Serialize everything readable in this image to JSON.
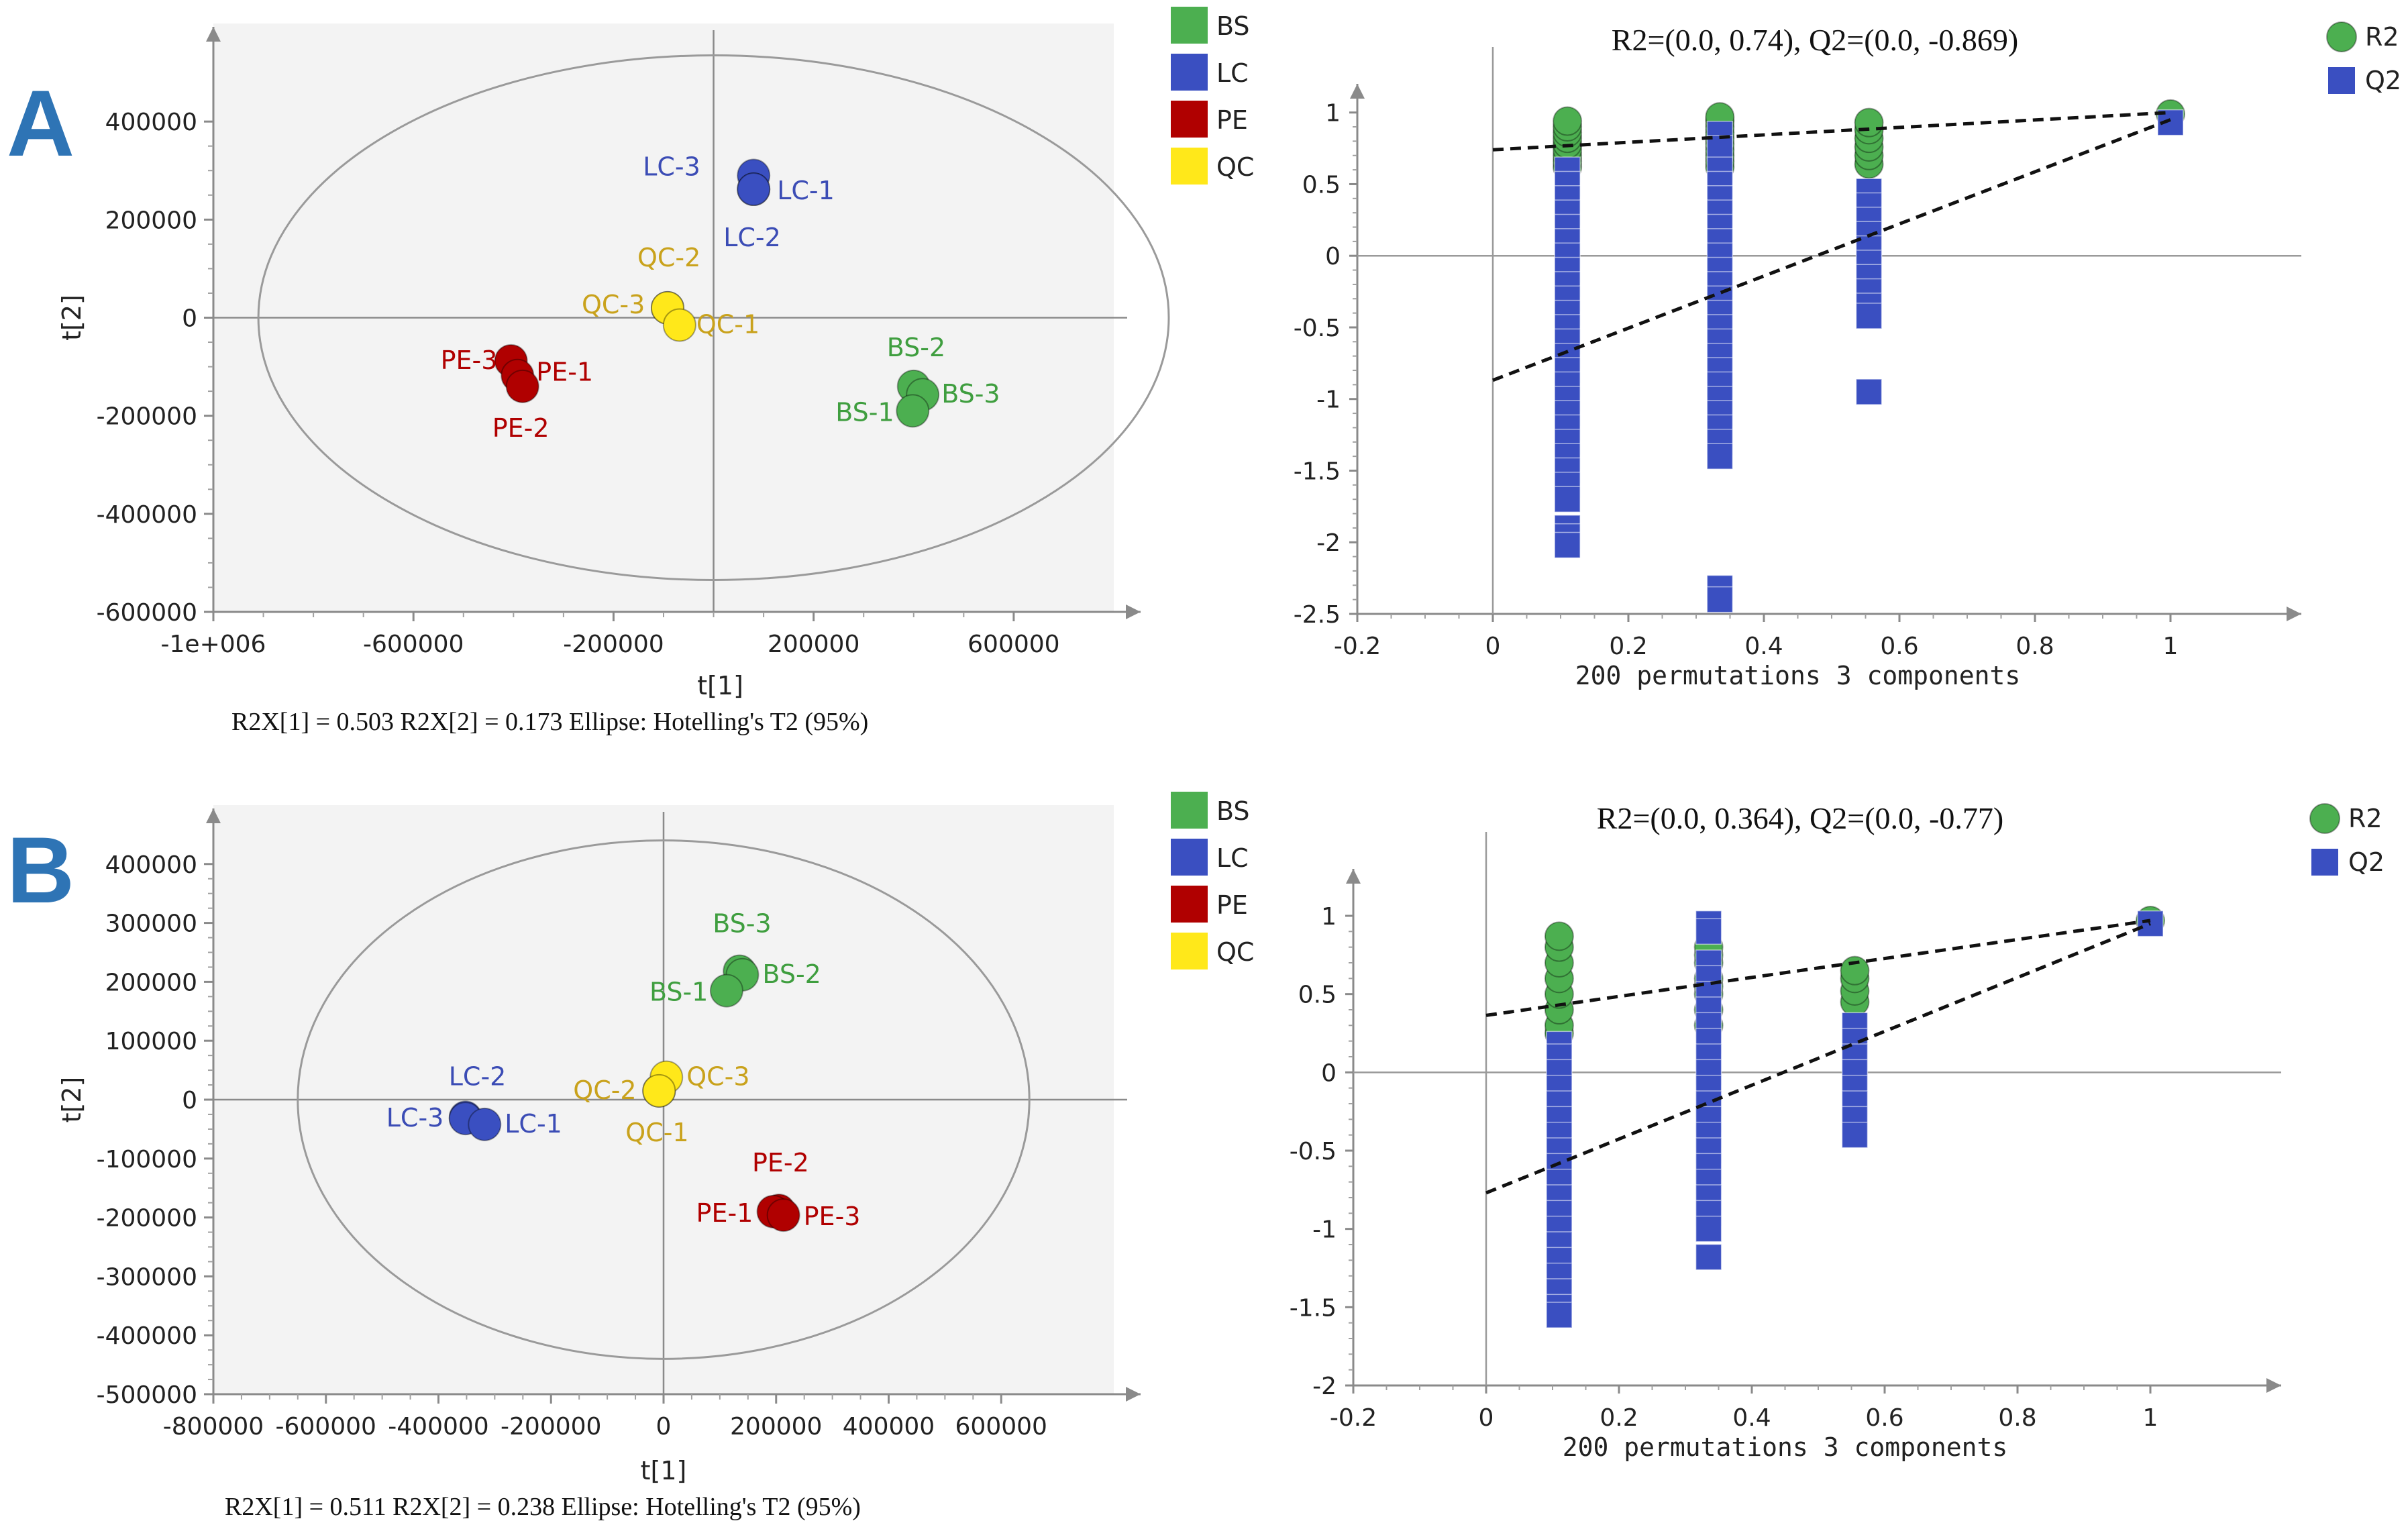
{
  "colors": {
    "BS": "#4caf50",
    "LC": "#3a4fc1",
    "PE": "#b00000",
    "QC": "#ffe81a",
    "BS_text": "#3f9e3f",
    "LC_text": "#3b4cb5",
    "PE_text": "#b00000",
    "QC_text": "#c9a21c",
    "R2": "#4caf50",
    "Q2": "#3a4fc1"
  },
  "panels": [
    {
      "letter": "A",
      "pca": {
        "type": "scatter",
        "xlabel": "t[1]",
        "ylabel": "t[2]",
        "xlim": [
          -1000000,
          800000
        ],
        "ylim": [
          -600000,
          600000
        ],
        "xticks": [
          -1000000,
          -600000,
          -200000,
          200000,
          600000
        ],
        "xtick_labels": [
          "-1e+006",
          "-600000",
          "-200000",
          "200000",
          "600000"
        ],
        "yticks": [
          -600000,
          -400000,
          -200000,
          0,
          200000,
          400000
        ],
        "ytick_labels": [
          "-600000",
          "-400000",
          "-200000",
          "0",
          "200000",
          "400000"
        ],
        "ellipse": {
          "cx": 0,
          "cy": 0,
          "rx": 910000,
          "ry": 535000
        },
        "footer": "R2X[1] = 0.503    R2X[2] = 0.173    Ellipse: Hotelling's T2 (95%)",
        "legend": [
          "BS",
          "LC",
          "PE",
          "QC"
        ],
        "points": [
          {
            "label": "LC-3",
            "group": "LC",
            "x": 80000,
            "y": 290000,
            "ldx": -165,
            "ldy": 0
          },
          {
            "label": "LC-1",
            "group": "LC",
            "x": 80000,
            "y": 262000,
            "ldx": 35,
            "ldy": 15
          },
          {
            "label": "LC-2",
            "group": "LC",
            "x": 80000,
            "y": 262000,
            "ldx": -45,
            "ldy": 85
          },
          {
            "label": "QC-2",
            "group": "QC",
            "x": -92000,
            "y": 20000,
            "ldx": -45,
            "ldy": -62
          },
          {
            "label": "QC-3",
            "group": "QC",
            "x": -92000,
            "y": 20000,
            "ldx": -128,
            "ldy": 8
          },
          {
            "label": "QC-1",
            "group": "QC",
            "x": -68000,
            "y": -15000,
            "ldx": 25,
            "ldy": 12
          },
          {
            "label": "PE-3",
            "group": "PE",
            "x": -405000,
            "y": -88000,
            "ldx": -105,
            "ldy": 12
          },
          {
            "label": "PE-1",
            "group": "PE",
            "x": -392000,
            "y": -118000,
            "ldx": 28,
            "ldy": 8
          },
          {
            "label": "PE-2",
            "group": "PE",
            "x": -382000,
            "y": -140000,
            "ldx": -45,
            "ldy": 75
          },
          {
            "label": "BS-2",
            "group": "BS",
            "x": 400000,
            "y": -140000,
            "ldx": -40,
            "ldy": -45
          },
          {
            "label": "BS-3",
            "group": "BS",
            "x": 418000,
            "y": -157000,
            "ldx": 28,
            "ldy": 12
          },
          {
            "label": "BS-1",
            "group": "BS",
            "x": 398000,
            "y": -190000,
            "ldx": -115,
            "ldy": 15
          }
        ]
      },
      "perm": {
        "type": "scatter",
        "title": "R2=(0.0, 0.74), Q2=(0.0, -0.869)",
        "xlabel": "200 permutations 3 components",
        "xlim": [
          -0.2,
          1.2
        ],
        "ylim": [
          -2.5,
          1.2
        ],
        "xticks": [
          -0.2,
          0,
          0.2,
          0.4,
          0.6,
          0.8,
          1
        ],
        "xtick_labels": [
          "-0.2",
          "0",
          "0.2",
          "0.4",
          "0.6",
          "0.8",
          "1"
        ],
        "yticks": [
          -2.5,
          -2,
          -1.5,
          -1,
          -0.5,
          0,
          0.5,
          1
        ],
        "ytick_labels": [
          "-2.5",
          "-2",
          "-1.5",
          "-1",
          "-0.5",
          "0",
          "0.5",
          "1"
        ],
        "legend": [
          "R2",
          "Q2"
        ],
        "r2_line": [
          [
            0,
            0.74
          ],
          [
            1,
            1.0
          ]
        ],
        "q2_line": [
          [
            0,
            -0.869
          ],
          [
            1,
            0.95
          ]
        ],
        "r2_points": [
          {
            "x": 0.11,
            "y": [
              0.62,
              0.66,
              0.7,
              0.74,
              0.78,
              0.82,
              0.86,
              0.9,
              0.94
            ]
          },
          {
            "x": 0.335,
            "y": [
              0.62,
              0.66,
              0.7,
              0.74,
              0.78,
              0.82,
              0.86,
              0.9,
              0.94,
              0.97
            ]
          },
          {
            "x": 0.555,
            "y": [
              0.64,
              0.7,
              0.76,
              0.82,
              0.88,
              0.93
            ]
          },
          {
            "x": 1.0,
            "y": [
              0.99
            ]
          }
        ],
        "q2_points": [
          {
            "x": 0.11,
            "y": [
              0.6,
              0.5,
              0.4,
              0.3,
              0.2,
              0.1,
              0.0,
              -0.1,
              -0.2,
              -0.3,
              -0.4,
              -0.5,
              -0.6,
              -0.7,
              -0.8,
              -0.9,
              -1.0,
              -1.1,
              -1.2,
              -1.3,
              -1.4,
              -1.5,
              -1.6,
              -1.7,
              -1.9,
              -1.96,
              -2.02
            ]
          },
          {
            "x": 0.335,
            "y": [
              0.85,
              0.75,
              0.6,
              0.5,
              0.4,
              0.3,
              0.2,
              0.1,
              0.0,
              -0.1,
              -0.2,
              -0.3,
              -0.4,
              -0.5,
              -0.6,
              -0.7,
              -0.8,
              -0.9,
              -1.0,
              -1.1,
              -1.2,
              -1.3,
              -1.4,
              -2.32,
              -2.4
            ]
          },
          {
            "x": 0.555,
            "y": [
              0.45,
              0.35,
              0.25,
              0.15,
              0.05,
              -0.05,
              -0.15,
              -0.25,
              -0.35,
              -0.42,
              -0.95
            ]
          },
          {
            "x": 1.0,
            "y": [
              0.93
            ]
          }
        ]
      }
    },
    {
      "letter": "B",
      "pca": {
        "type": "scatter",
        "xlabel": "t[1]",
        "ylabel": "t[2]",
        "xlim": [
          -800000,
          800000
        ],
        "ylim": [
          -500000,
          500000
        ],
        "xticks": [
          -800000,
          -600000,
          -400000,
          -200000,
          0,
          200000,
          400000,
          600000
        ],
        "xtick_labels": [
          "-800000",
          "-600000",
          "-400000",
          "-200000",
          "0",
          "200000",
          "400000",
          "600000"
        ],
        "yticks": [
          -500000,
          -400000,
          -300000,
          -200000,
          -100000,
          0,
          100000,
          200000,
          300000,
          400000
        ],
        "ytick_labels": [
          "-500000",
          "-400000",
          "-300000",
          "-200000",
          "-100000",
          "0",
          "100000",
          "200000",
          "300000",
          "400000"
        ],
        "ellipse": {
          "cx": 0,
          "cy": 0,
          "rx": 650000,
          "ry": 440000
        },
        "footer": "R2X[1] = 0.511    R2X[2] = 0.238    Ellipse: Hotelling's T2 (95%)",
        "legend": [
          "BS",
          "LC",
          "PE",
          "QC"
        ],
        "points": [
          {
            "label": "BS-3",
            "group": "BS",
            "x": 135000,
            "y": 218000,
            "ldx": -40,
            "ldy": -58
          },
          {
            "label": "BS-2",
            "group": "BS",
            "x": 140000,
            "y": 212000,
            "ldx": 30,
            "ldy": 12
          },
          {
            "label": "BS-1",
            "group": "BS",
            "x": 112000,
            "y": 185000,
            "ldx": -115,
            "ldy": 15
          },
          {
            "label": "LC-2",
            "group": "LC",
            "x": -352000,
            "y": -30000,
            "ldx": -25,
            "ldy": -48
          },
          {
            "label": "LC-3",
            "group": "LC",
            "x": -352000,
            "y": -32000,
            "ldx": -118,
            "ldy": 12
          },
          {
            "label": "LC-1",
            "group": "LC",
            "x": -318000,
            "y": -42000,
            "ldx": 30,
            "ldy": 12
          },
          {
            "label": "QC-2",
            "group": "QC",
            "x": -8000,
            "y": 15000,
            "ldx": -128,
            "ldy": 12
          },
          {
            "label": "QC-3",
            "group": "QC",
            "x": 5000,
            "y": 38000,
            "ldx": 30,
            "ldy": 12
          },
          {
            "label": "QC-1",
            "group": "QC",
            "x": -8000,
            "y": 15000,
            "ldx": -50,
            "ldy": 75
          },
          {
            "label": "PE-2",
            "group": "PE",
            "x": 205000,
            "y": -188000,
            "ldx": -40,
            "ldy": -58
          },
          {
            "label": "PE-1",
            "group": "PE",
            "x": 195000,
            "y": -190000,
            "ldx": -115,
            "ldy": 15
          },
          {
            "label": "PE-3",
            "group": "PE",
            "x": 213000,
            "y": -196000,
            "ldx": 30,
            "ldy": 15
          }
        ]
      },
      "perm": {
        "type": "scatter",
        "title": "R2=(0.0, 0.364), Q2=(0.0, -0.77)",
        "xlabel": "200 permutations 3 components",
        "xlim": [
          -0.2,
          1.2
        ],
        "ylim": [
          -2,
          1.3
        ],
        "xticks": [
          -0.2,
          0,
          0.2,
          0.4,
          0.6,
          0.8,
          1
        ],
        "xtick_labels": [
          "-0.2",
          "0",
          "0.2",
          "0.4",
          "0.6",
          "0.8",
          "1"
        ],
        "yticks": [
          -2,
          -1.5,
          -1,
          -0.5,
          0,
          0.5,
          1
        ],
        "ytick_labels": [
          "-2",
          "-1.5",
          "-1",
          "-0.5",
          "0",
          "0.5",
          "1"
        ],
        "legend": [
          "R2",
          "Q2"
        ],
        "r2_line": [
          [
            0,
            0.364
          ],
          [
            1,
            0.97
          ]
        ],
        "q2_line": [
          [
            0,
            -0.77
          ],
          [
            1,
            0.95
          ]
        ],
        "r2_points": [
          {
            "x": 0.11,
            "y": [
              0.25,
              0.3,
              0.4,
              0.5,
              0.6,
              0.7,
              0.8,
              0.87
            ]
          },
          {
            "x": 0.335,
            "y": [
              0.3,
              0.4,
              0.5,
              0.55,
              0.6,
              0.7,
              0.75,
              0.8
            ]
          },
          {
            "x": 0.555,
            "y": [
              0.45,
              0.52,
              0.6,
              0.65
            ]
          },
          {
            "x": 1.0,
            "y": [
              0.97
            ]
          }
        ],
        "q2_points": [
          {
            "x": 0.11,
            "y": [
              0.18,
              0.1,
              0.0,
              -0.1,
              -0.2,
              -0.3,
              -0.4,
              -0.5,
              -0.6,
              -0.7,
              -0.8,
              -0.9,
              -1.0,
              -1.1,
              -1.2,
              -1.3,
              -1.4,
              -1.5,
              -1.55
            ]
          },
          {
            "x": 0.335,
            "y": [
              0.95,
              0.9,
              0.7,
              0.6,
              0.5,
              0.4,
              0.3,
              0.2,
              0.1,
              0.0,
              -0.1,
              -0.2,
              -0.3,
              -0.4,
              -0.5,
              -0.6,
              -0.7,
              -0.8,
              -0.9,
              -1.0,
              -1.18
            ]
          },
          {
            "x": 0.555,
            "y": [
              0.3,
              0.2,
              0.1,
              0.0,
              -0.1,
              -0.2,
              -0.3,
              -0.4
            ]
          },
          {
            "x": 1.0,
            "y": [
              0.95
            ]
          }
        ]
      }
    }
  ]
}
